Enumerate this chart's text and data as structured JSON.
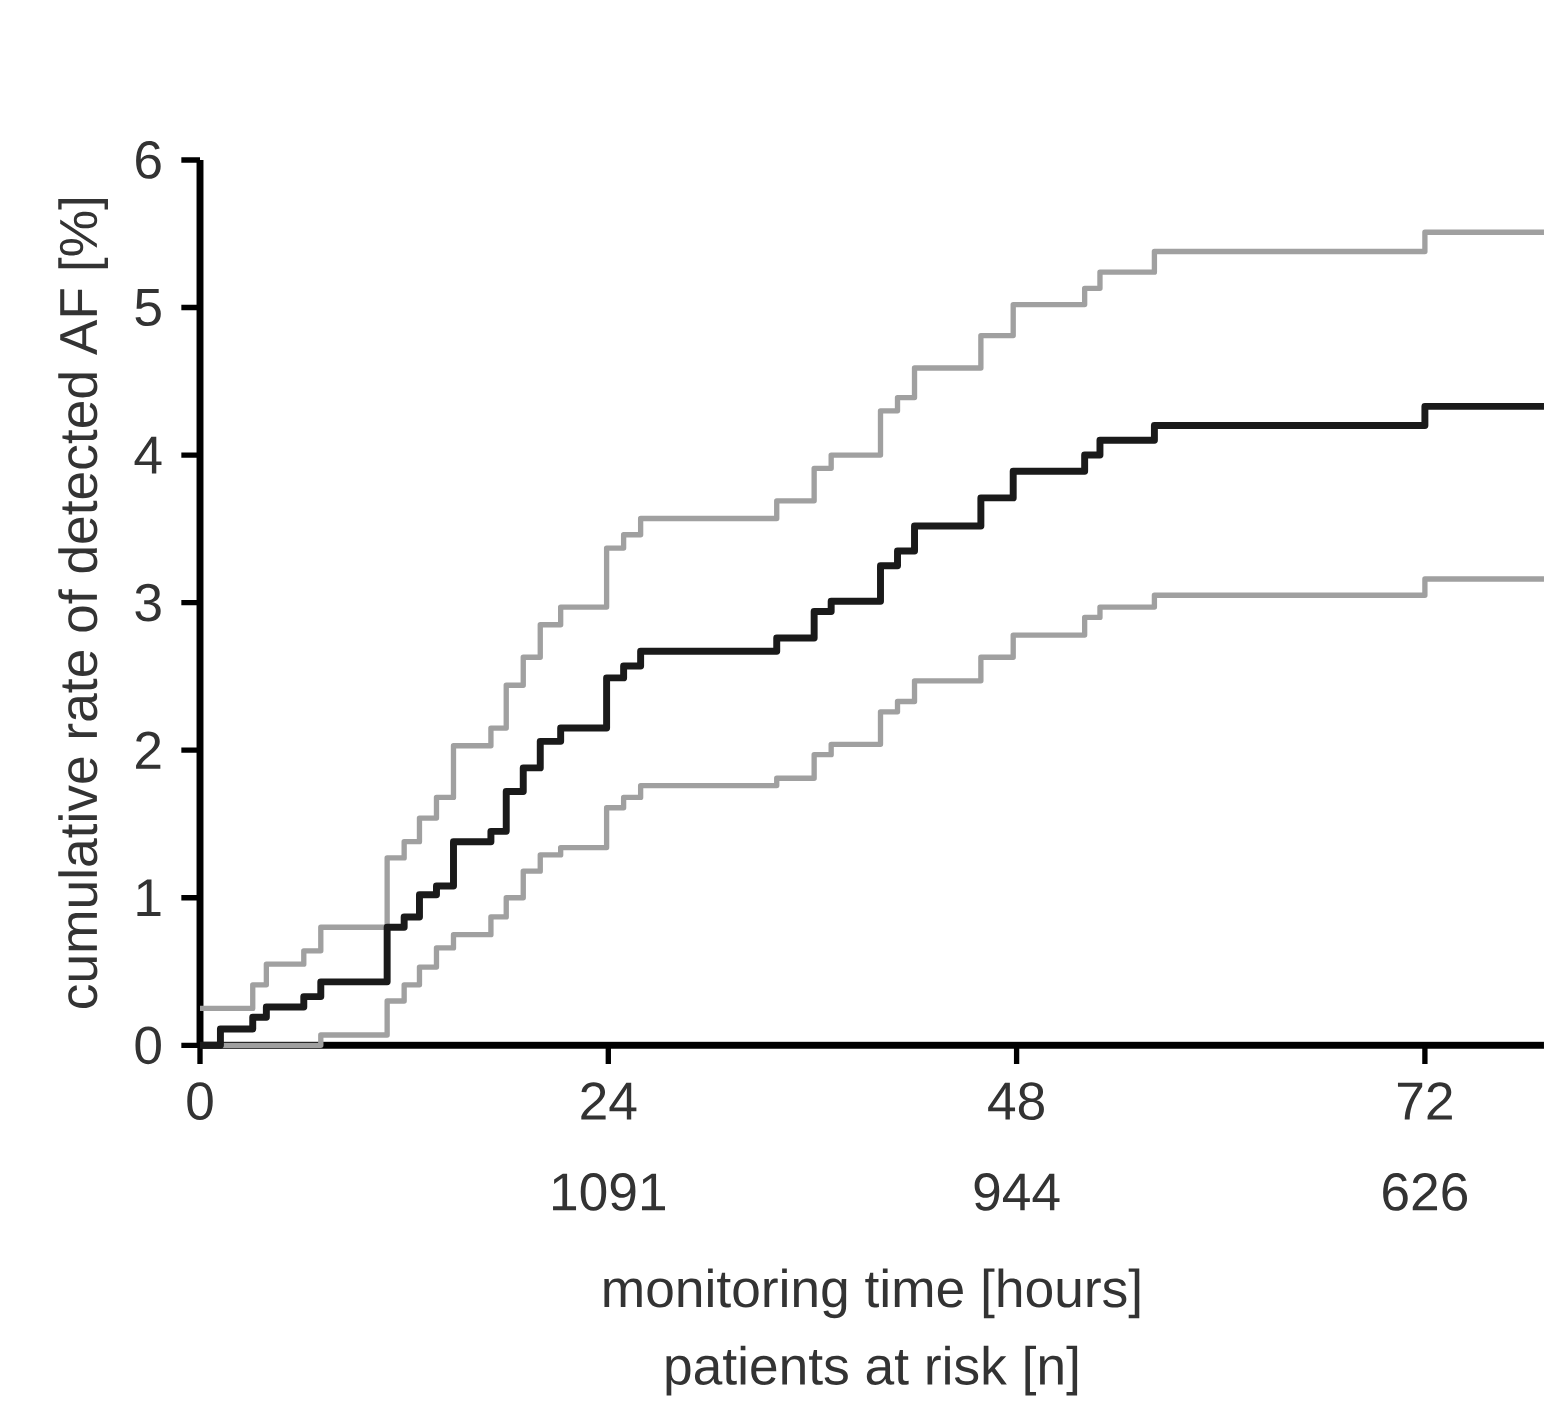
{
  "chart_data": {
    "type": "step",
    "xlabel": "monitoring time [hours]",
    "ylabel": "cumulative rate of detected AF [%]",
    "annotations": [
      "1091",
      "944",
      "626",
      "patients at risk [n]"
    ],
    "xlim": [
      0,
      79
    ],
    "ylim": [
      0,
      6
    ],
    "xticks": [
      0,
      24,
      48,
      72
    ],
    "yticks": [
      0,
      1,
      2,
      3,
      4,
      5,
      6
    ],
    "grid": false,
    "marker": "none",
    "line_style": "solid",
    "series": [
      {
        "color": "#a0a0a0",
        "x": [
          0,
          3.1,
          3.9,
          6.1,
          7.1,
          11.0,
          12.0,
          12.9,
          13.9,
          14.9,
          17.1,
          18.0,
          19.0,
          20.0,
          21.2,
          23.9,
          24.9,
          25.9,
          33.9,
          36.1,
          37.1,
          40.0,
          41.0,
          42.0,
          45.9,
          47.8,
          52.0,
          52.9,
          56.1,
          72.0,
          79
        ],
        "values": [
          0.25,
          0.41,
          0.55,
          0.64,
          0.8,
          1.27,
          1.38,
          1.54,
          1.68,
          2.03,
          2.15,
          2.44,
          2.63,
          2.85,
          2.97,
          3.37,
          3.46,
          3.57,
          3.69,
          3.91,
          4.0,
          4.3,
          4.39,
          4.59,
          4.81,
          5.02,
          5.13,
          5.24,
          5.38,
          5.51,
          5.51
        ]
      },
      {
        "color": "#a0a0a0",
        "x": [
          0,
          7.1,
          11.0,
          12.0,
          12.9,
          13.9,
          14.9,
          17.1,
          18.0,
          19.0,
          20.0,
          21.2,
          23.9,
          24.9,
          25.9,
          33.9,
          36.1,
          37.1,
          40.0,
          41.0,
          42.0,
          45.9,
          47.8,
          52.0,
          52.9,
          56.1,
          72.0,
          79
        ],
        "values": [
          0,
          0.07,
          0.3,
          0.41,
          0.53,
          0.66,
          0.75,
          0.87,
          1.0,
          1.18,
          1.29,
          1.34,
          1.61,
          1.68,
          1.76,
          1.81,
          1.97,
          2.04,
          2.26,
          2.33,
          2.47,
          2.63,
          2.78,
          2.9,
          2.97,
          3.05,
          3.16,
          3.16
        ]
      },
      {
        "color": "#1a1a1a",
        "x": [
          0,
          1.2,
          3.1,
          3.9,
          6.1,
          7.1,
          11.0,
          12.0,
          12.9,
          13.9,
          14.9,
          17.1,
          18.0,
          19.0,
          20.0,
          21.2,
          23.9,
          24.9,
          25.9,
          33.9,
          36.1,
          37.1,
          40.0,
          41.0,
          42.0,
          45.9,
          47.8,
          52.0,
          52.9,
          56.1,
          72.0,
          79
        ],
        "values": [
          0,
          0.11,
          0.19,
          0.26,
          0.33,
          0.43,
          0.8,
          0.87,
          1.02,
          1.08,
          1.38,
          1.45,
          1.72,
          1.88,
          2.06,
          2.15,
          2.49,
          2.57,
          2.67,
          2.76,
          2.94,
          3.01,
          3.25,
          3.35,
          3.52,
          3.71,
          3.89,
          4.0,
          4.1,
          4.2,
          4.33,
          4.33
        ]
      }
    ]
  }
}
